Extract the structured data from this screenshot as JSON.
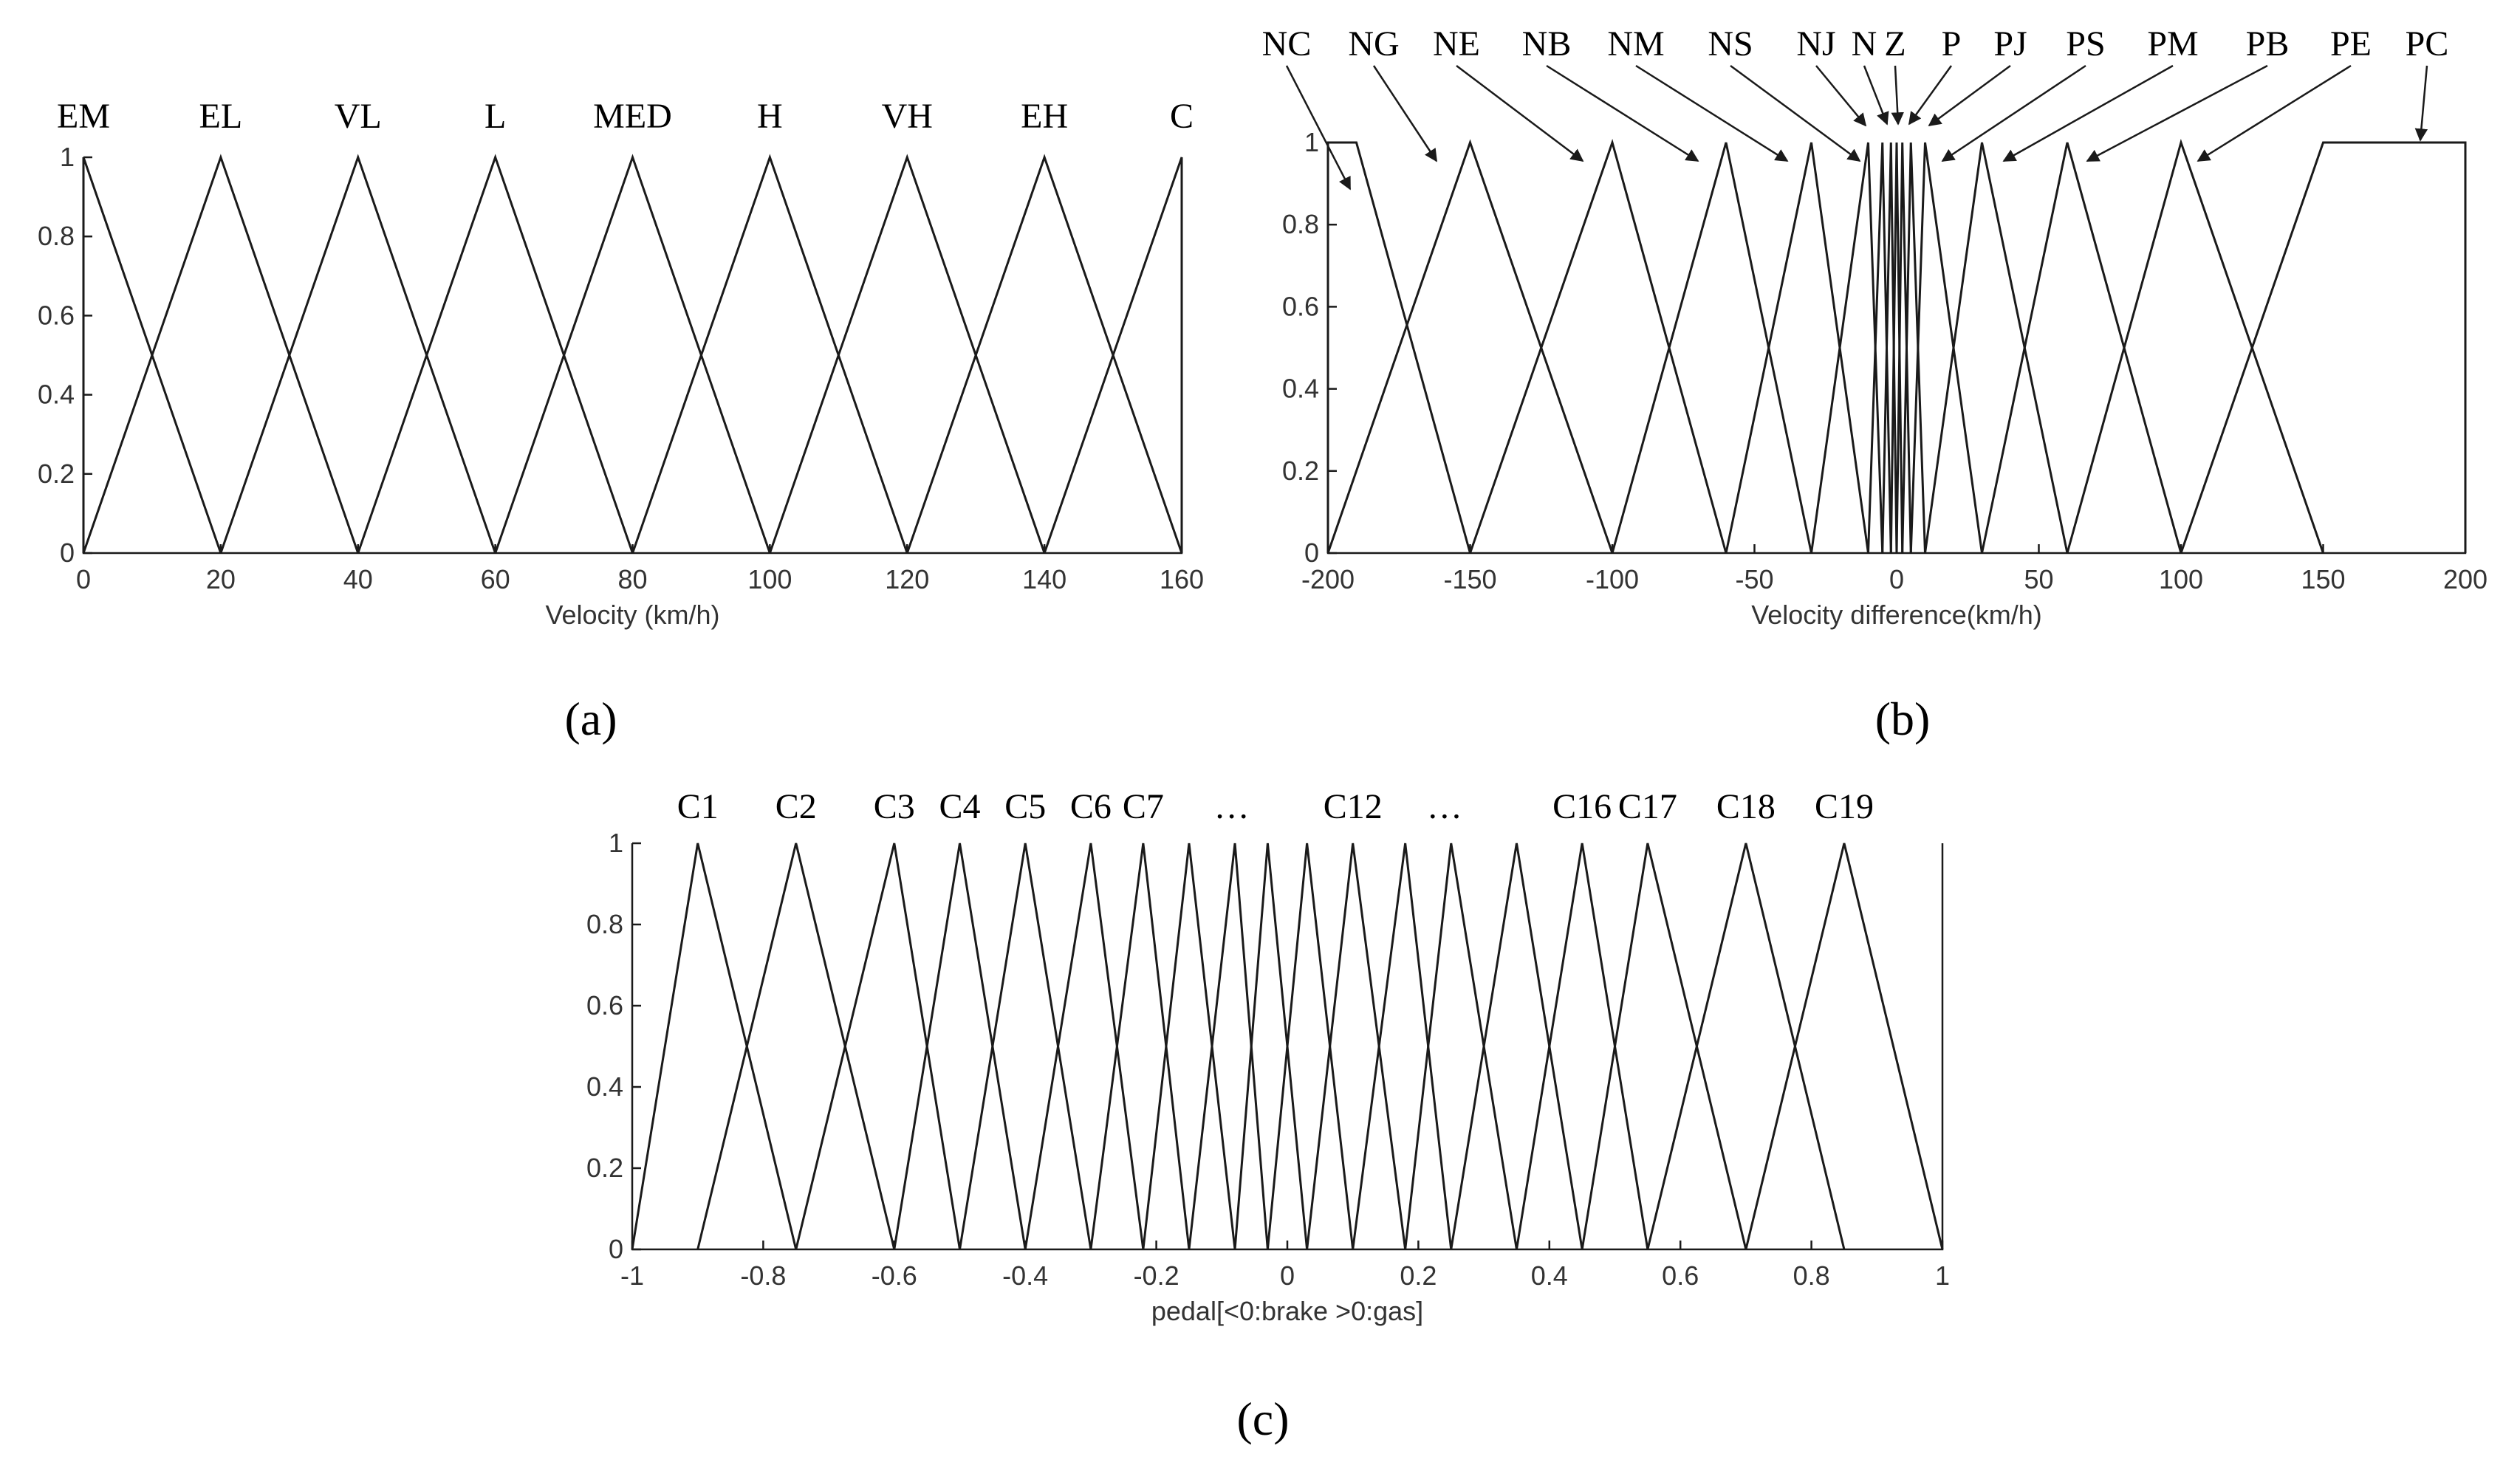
{
  "chart_data": [
    {
      "panel": "a",
      "type": "line",
      "caption": "(a)",
      "xlabel": "Velocity (km/h)",
      "ylabel": "",
      "xlim": [
        0,
        160
      ],
      "ylim": [
        0,
        1
      ],
      "xticks": [
        0,
        20,
        40,
        60,
        80,
        100,
        120,
        140,
        160
      ],
      "yticks": [
        "0",
        "0.2",
        "0.4",
        "0.6",
        "0.8",
        "1"
      ],
      "labels": [
        "EM",
        "EL",
        "VL",
        "L",
        "MED",
        "H",
        "VH",
        "EH",
        "C"
      ],
      "series": [
        {
          "name": "EM",
          "x": [
            0,
            0,
            20
          ],
          "y": [
            0,
            1,
            0
          ]
        },
        {
          "name": "EL",
          "x": [
            0,
            20,
            40
          ],
          "y": [
            0,
            1,
            0
          ]
        },
        {
          "name": "VL",
          "x": [
            20,
            40,
            60
          ],
          "y": [
            0,
            1,
            0
          ]
        },
        {
          "name": "L",
          "x": [
            40,
            60,
            80
          ],
          "y": [
            0,
            1,
            0
          ]
        },
        {
          "name": "MED",
          "x": [
            60,
            80,
            100
          ],
          "y": [
            0,
            1,
            0
          ]
        },
        {
          "name": "H",
          "x": [
            80,
            100,
            120
          ],
          "y": [
            0,
            1,
            0
          ]
        },
        {
          "name": "VH",
          "x": [
            100,
            120,
            140
          ],
          "y": [
            0,
            1,
            0
          ]
        },
        {
          "name": "EH",
          "x": [
            120,
            140,
            160
          ],
          "y": [
            0,
            1,
            0
          ]
        },
        {
          "name": "C",
          "x": [
            140,
            160,
            160
          ],
          "y": [
            0,
            1,
            0
          ]
        }
      ]
    },
    {
      "panel": "b",
      "type": "line",
      "caption": "(b)",
      "xlabel": "Velocity difference(km/h)",
      "ylabel": "",
      "xlim": [
        -200,
        200
      ],
      "ylim": [
        0,
        1
      ],
      "xticks": [
        -200,
        -150,
        -100,
        -50,
        0,
        50,
        100,
        150,
        200
      ],
      "yticks": [
        "0",
        "0.2",
        "0.4",
        "0.6",
        "0.8",
        "1"
      ],
      "labels": [
        "NC",
        "NG",
        "NE",
        "NB",
        "NM",
        "NS",
        "NJ",
        "N",
        "Z",
        "P",
        "PJ",
        "PS",
        "PM",
        "PB",
        "PE",
        "PC"
      ],
      "series": [
        {
          "name": "NC",
          "x": [
            -200,
            -200,
            -190,
            -150
          ],
          "y": [
            0,
            1,
            1,
            0
          ]
        },
        {
          "name": "NG",
          "x": [
            -200,
            -150,
            -100
          ],
          "y": [
            0,
            1,
            0
          ]
        },
        {
          "name": "NE",
          "x": [
            -150,
            -100,
            -60
          ],
          "y": [
            0,
            1,
            0
          ]
        },
        {
          "name": "NB",
          "x": [
            -100,
            -60,
            -30
          ],
          "y": [
            0,
            1,
            0
          ]
        },
        {
          "name": "NM",
          "x": [
            -60,
            -30,
            -10
          ],
          "y": [
            0,
            1,
            0
          ]
        },
        {
          "name": "NS",
          "x": [
            -30,
            -10,
            -5
          ],
          "y": [
            0,
            1,
            0
          ]
        },
        {
          "name": "NJ",
          "x": [
            -10,
            -5,
            -2
          ],
          "y": [
            0,
            1,
            0
          ]
        },
        {
          "name": "N",
          "x": [
            -5,
            -2,
            0
          ],
          "y": [
            0,
            1,
            0
          ]
        },
        {
          "name": "Z",
          "x": [
            -2,
            0,
            2
          ],
          "y": [
            0,
            1,
            0
          ]
        },
        {
          "name": "P",
          "x": [
            0,
            2,
            5
          ],
          "y": [
            0,
            1,
            0
          ]
        },
        {
          "name": "PJ",
          "x": [
            2,
            5,
            10
          ],
          "y": [
            0,
            1,
            0
          ]
        },
        {
          "name": "PS",
          "x": [
            5,
            10,
            30
          ],
          "y": [
            0,
            1,
            0
          ]
        },
        {
          "name": "PM",
          "x": [
            10,
            30,
            60
          ],
          "y": [
            0,
            1,
            0
          ]
        },
        {
          "name": "PB",
          "x": [
            30,
            60,
            100
          ],
          "y": [
            0,
            1,
            0
          ]
        },
        {
          "name": "PE",
          "x": [
            60,
            100,
            150
          ],
          "y": [
            0,
            1,
            0
          ]
        },
        {
          "name": "PC",
          "x": [
            100,
            150,
            200,
            200
          ],
          "y": [
            0,
            1,
            1,
            0
          ]
        }
      ]
    },
    {
      "panel": "c",
      "type": "line",
      "caption": "(c)",
      "xlabel": "pedal[<0:brake >0:gas]",
      "ylabel": "",
      "xlim": [
        -1,
        1
      ],
      "ylim": [
        0,
        1
      ],
      "xticks": [
        "-1",
        "-0.8",
        "-0.6",
        "-0.4",
        "-0.2",
        "0",
        "0.2",
        "0.4",
        "0.6",
        "0.8",
        "1"
      ],
      "yticks": [
        "0",
        "0.2",
        "0.4",
        "0.6",
        "0.8",
        "1"
      ],
      "labels": [
        "C1",
        "C2",
        "C3",
        "C4",
        "C5",
        "C6",
        "C7",
        "…",
        "C12",
        "…",
        "C16",
        "C17",
        "C18",
        "C19"
      ],
      "peaks": [
        -0.9,
        -0.75,
        -0.6,
        -0.5,
        -0.4,
        -0.3,
        -0.22,
        -0.15,
        -0.08,
        -0.03,
        0.03,
        0.1,
        0.18,
        0.25,
        0.35,
        0.45,
        0.55,
        0.7,
        0.85
      ],
      "label_x": [
        -0.9,
        -0.75,
        -0.6,
        -0.5,
        -0.4,
        -0.3,
        -0.22,
        -0.085,
        0.1,
        0.24,
        0.45,
        0.55,
        0.7,
        0.85
      ]
    }
  ]
}
